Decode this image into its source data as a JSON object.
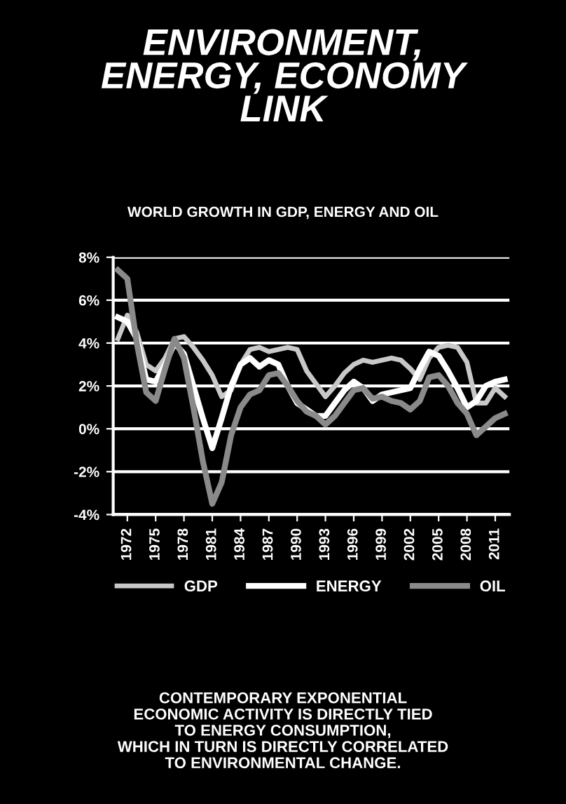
{
  "chart_data": {
    "type": "line",
    "title": "ENVIRONMENT,\nENERGY, ECONOMY\nLINK",
    "subtitle": "WORLD GROWTH IN GDP, ENERGY AND OIL",
    "x": [
      1971,
      1972,
      1973,
      1974,
      1975,
      1976,
      1977,
      1978,
      1979,
      1980,
      1981,
      1982,
      1983,
      1984,
      1985,
      1986,
      1987,
      1988,
      1989,
      1990,
      1991,
      1992,
      1993,
      1994,
      1995,
      1996,
      1997,
      1998,
      1999,
      2000,
      2001,
      2002,
      2003,
      2004,
      2005,
      2006,
      2007,
      2008,
      2009,
      2010,
      2011,
      2012
    ],
    "series": [
      {
        "name": "GDP",
        "color": "#c8c8c8",
        "values": [
          4.2,
          5.3,
          4.5,
          3.0,
          2.7,
          3.3,
          4.2,
          4.3,
          3.8,
          3.2,
          2.5,
          1.5,
          1.8,
          3.0,
          3.7,
          3.8,
          3.6,
          3.7,
          3.8,
          3.7,
          2.7,
          2.1,
          1.5,
          2.0,
          2.6,
          3.0,
          3.2,
          3.1,
          3.2,
          3.3,
          3.2,
          2.8,
          2.3,
          3.3,
          3.8,
          3.9,
          3.8,
          3.1,
          1.2,
          1.2,
          1.9,
          1.5
        ]
      },
      {
        "name": "ENERGY",
        "color": "#ffffff",
        "values": [
          5.2,
          5.0,
          4.2,
          2.3,
          2.2,
          3.0,
          4.0,
          3.5,
          2.0,
          0.5,
          -0.9,
          0.5,
          2.0,
          3.0,
          3.3,
          2.9,
          3.2,
          3.0,
          2.0,
          1.2,
          0.9,
          0.6,
          0.6,
          1.2,
          1.8,
          2.2,
          1.9,
          1.3,
          1.6,
          1.7,
          1.8,
          1.9,
          2.8,
          3.6,
          3.4,
          2.7,
          1.9,
          1.0,
          1.3,
          2.0,
          2.2,
          2.3
        ]
      },
      {
        "name": "OIL",
        "color": "#8a8a8a",
        "values": [
          7.4,
          7.0,
          4.0,
          1.7,
          1.3,
          2.8,
          4.2,
          3.3,
          1.0,
          -1.5,
          -3.5,
          -2.5,
          -0.3,
          1.0,
          1.6,
          1.8,
          2.5,
          2.6,
          2.0,
          1.3,
          0.8,
          0.6,
          0.2,
          0.6,
          1.2,
          1.8,
          1.9,
          1.4,
          1.5,
          1.3,
          1.2,
          0.9,
          1.3,
          2.4,
          2.5,
          2.0,
          1.2,
          0.7,
          -0.3,
          0.1,
          0.5,
          0.7
        ]
      }
    ],
    "xlim": [
      1970.5,
      2012.5
    ],
    "xticks": [
      1972,
      1975,
      1978,
      1981,
      1984,
      1987,
      1990,
      1993,
      1996,
      1999,
      2002,
      2005,
      2008,
      2011
    ],
    "ylim": [
      -4,
      8
    ],
    "yticks": [
      {
        "value": -4,
        "label": "-4%"
      },
      {
        "value": -2,
        "label": "-2%"
      },
      {
        "value": 0,
        "label": "0%"
      },
      {
        "value": 2,
        "label": "2%"
      },
      {
        "value": 4,
        "label": "4%"
      },
      {
        "value": 6,
        "label": "6%"
      },
      {
        "value": 8,
        "label": "8%"
      }
    ],
    "grid": "y",
    "legend": "bottom",
    "marker": "none",
    "line_style": "solid",
    "annotations": [
      "CONTEMPORARY EXPONENTIAL\nECONOMIC ACTIVITY IS DIRECTLY TIED\nTO ENERGY CONSUMPTION,\nWHICH IN TURN IS DIRECTLY CORRELATED\nTO ENVIRONMENTAL CHANGE."
    ]
  }
}
